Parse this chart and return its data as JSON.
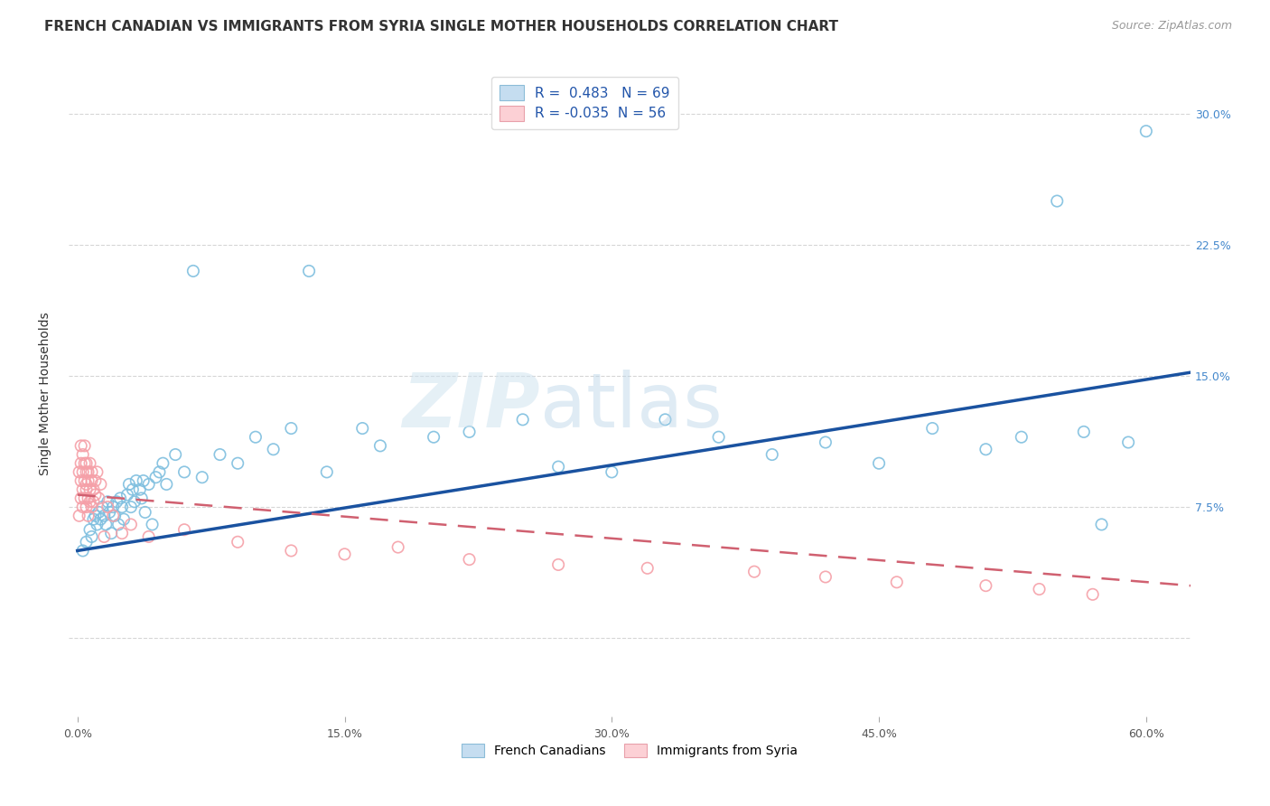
{
  "title": "FRENCH CANADIAN VS IMMIGRANTS FROM SYRIA SINGLE MOTHER HOUSEHOLDS CORRELATION CHART",
  "source": "Source: ZipAtlas.com",
  "xlabel_ticks": [
    "0.0%",
    "15.0%",
    "30.0%",
    "45.0%",
    "60.0%"
  ],
  "xlabel_vals": [
    0.0,
    0.15,
    0.3,
    0.45,
    0.6
  ],
  "ylabel": "Single Mother Households",
  "yticks": [
    0.0,
    0.075,
    0.15,
    0.225,
    0.3
  ],
  "ytick_labels": [
    "",
    "7.5%",
    "15.0%",
    "22.5%",
    "30.0%"
  ],
  "xlim": [
    -0.005,
    0.625
  ],
  "ylim": [
    -0.045,
    0.325
  ],
  "r_blue": 0.483,
  "n_blue": 69,
  "r_pink": -0.035,
  "n_pink": 56,
  "blue_color": "#7fbfdf",
  "pink_color": "#f5a0a8",
  "blue_edge": "#5a9fc0",
  "pink_edge": "#e07080",
  "trend_blue": "#1a52a0",
  "trend_pink": "#d06070",
  "legend_label_blue": "French Canadians",
  "legend_label_pink": "Immigrants from Syria",
  "blue_scatter_x": [
    0.003,
    0.005,
    0.007,
    0.008,
    0.009,
    0.01,
    0.011,
    0.012,
    0.013,
    0.014,
    0.015,
    0.016,
    0.017,
    0.018,
    0.019,
    0.02,
    0.021,
    0.022,
    0.023,
    0.024,
    0.025,
    0.026,
    0.028,
    0.029,
    0.03,
    0.031,
    0.032,
    0.033,
    0.035,
    0.036,
    0.037,
    0.038,
    0.04,
    0.042,
    0.044,
    0.046,
    0.048,
    0.05,
    0.055,
    0.06,
    0.065,
    0.07,
    0.08,
    0.09,
    0.1,
    0.11,
    0.12,
    0.13,
    0.14,
    0.16,
    0.17,
    0.2,
    0.22,
    0.25,
    0.27,
    0.3,
    0.33,
    0.36,
    0.39,
    0.42,
    0.45,
    0.48,
    0.51,
    0.53,
    0.55,
    0.565,
    0.575,
    0.59,
    0.6
  ],
  "blue_scatter_y": [
    0.05,
    0.055,
    0.062,
    0.058,
    0.068,
    0.07,
    0.065,
    0.072,
    0.068,
    0.075,
    0.07,
    0.065,
    0.078,
    0.072,
    0.06,
    0.075,
    0.07,
    0.078,
    0.065,
    0.08,
    0.075,
    0.068,
    0.082,
    0.088,
    0.075,
    0.085,
    0.078,
    0.09,
    0.085,
    0.08,
    0.09,
    0.072,
    0.088,
    0.065,
    0.092,
    0.095,
    0.1,
    0.088,
    0.105,
    0.095,
    0.21,
    0.092,
    0.105,
    0.1,
    0.115,
    0.108,
    0.12,
    0.21,
    0.095,
    0.12,
    0.11,
    0.115,
    0.118,
    0.125,
    0.098,
    0.095,
    0.125,
    0.115,
    0.105,
    0.112,
    0.1,
    0.12,
    0.108,
    0.115,
    0.25,
    0.118,
    0.065,
    0.112,
    0.29
  ],
  "pink_scatter_x": [
    0.001,
    0.001,
    0.002,
    0.002,
    0.002,
    0.002,
    0.003,
    0.003,
    0.003,
    0.003,
    0.004,
    0.004,
    0.004,
    0.004,
    0.005,
    0.005,
    0.005,
    0.005,
    0.005,
    0.006,
    0.006,
    0.006,
    0.006,
    0.007,
    0.007,
    0.007,
    0.008,
    0.008,
    0.008,
    0.009,
    0.009,
    0.01,
    0.01,
    0.011,
    0.012,
    0.013,
    0.015,
    0.017,
    0.02,
    0.025,
    0.03,
    0.04,
    0.06,
    0.09,
    0.12,
    0.15,
    0.18,
    0.22,
    0.27,
    0.32,
    0.38,
    0.42,
    0.46,
    0.51,
    0.54,
    0.57
  ],
  "pink_scatter_y": [
    0.07,
    0.095,
    0.08,
    0.1,
    0.11,
    0.09,
    0.075,
    0.095,
    0.085,
    0.105,
    0.09,
    0.1,
    0.08,
    0.11,
    0.088,
    0.075,
    0.095,
    0.085,
    0.1,
    0.07,
    0.09,
    0.08,
    0.095,
    0.085,
    0.078,
    0.1,
    0.09,
    0.075,
    0.095,
    0.085,
    0.078,
    0.09,
    0.082,
    0.095,
    0.08,
    0.088,
    0.058,
    0.075,
    0.07,
    0.06,
    0.065,
    0.058,
    0.062,
    0.055,
    0.05,
    0.048,
    0.052,
    0.045,
    0.042,
    0.04,
    0.038,
    0.035,
    0.032,
    0.03,
    0.028,
    0.025
  ],
  "blue_trend_x0": 0.0,
  "blue_trend_y0": 0.05,
  "blue_trend_x1": 0.625,
  "blue_trend_y1": 0.152,
  "pink_trend_x0": 0.0,
  "pink_trend_y0": 0.082,
  "pink_trend_x1": 0.625,
  "pink_trend_y1": 0.03,
  "title_fontsize": 11,
  "source_fontsize": 9,
  "axis_fontsize": 10,
  "tick_fontsize": 9
}
